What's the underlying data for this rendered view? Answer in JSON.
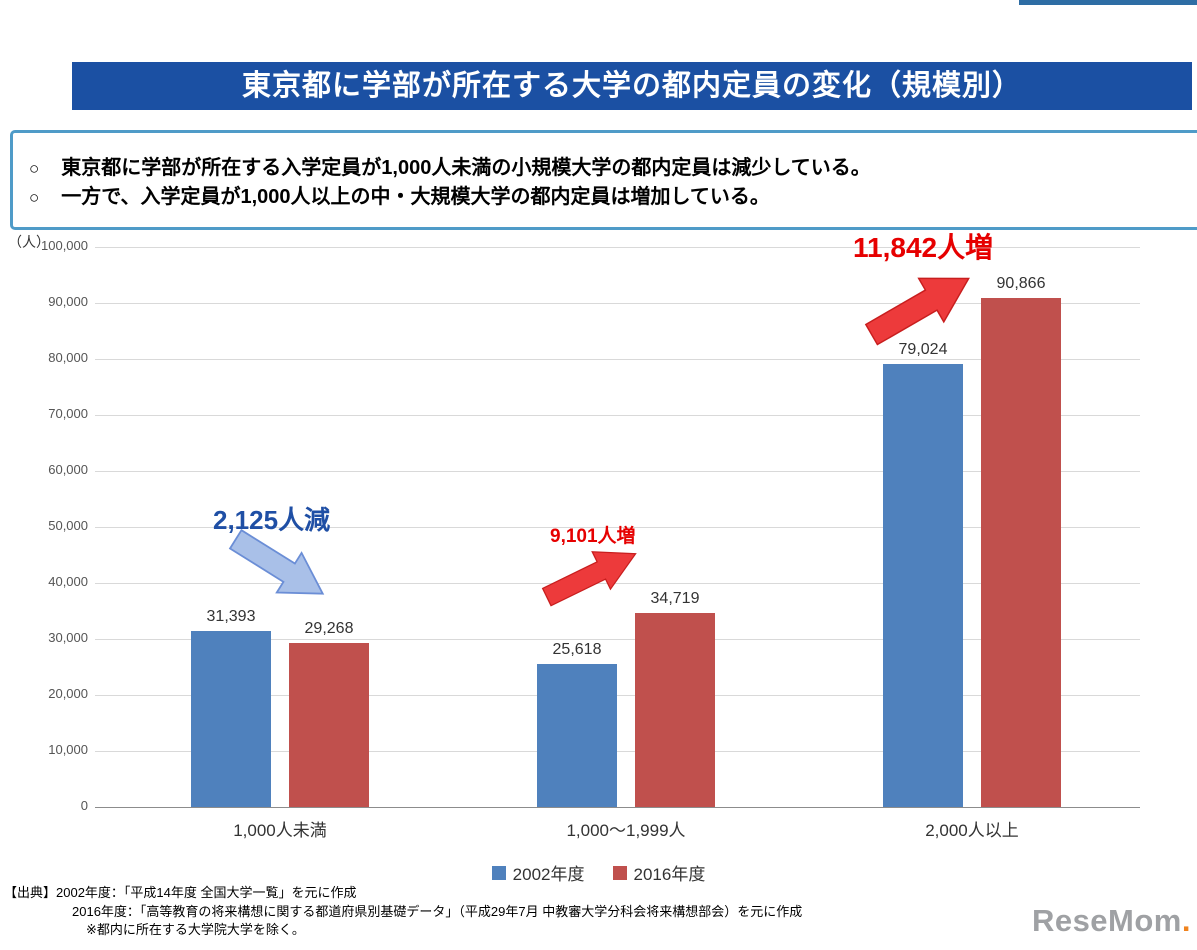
{
  "page": {
    "background": "#ffffff"
  },
  "accent": {
    "top_line_color": "#2E6DA4"
  },
  "header": {
    "title": "東京都に学部が所在する大学の都内定員の変化（規模別）",
    "bg_color": "#1B50A3",
    "text_color": "#ffffff"
  },
  "summary": {
    "bullet": "○",
    "border_color": "#4F9BC8",
    "points": [
      "東京都に学部が所在する入学定員が1,000人未満の小規模大学の都内定員は減少している。",
      "一方で、入学定員が1,000人以上の中・大規模大学の都内定員は増加している。"
    ]
  },
  "chart_data": {
    "type": "bar",
    "title": "",
    "unit_label": "（人）",
    "categories": [
      "1,000人未満",
      "1,000～1,999人",
      "2,000人以上"
    ],
    "series": [
      {
        "name": "2002年度",
        "color": "#4F81BD",
        "values": [
          31393,
          25618,
          79024
        ]
      },
      {
        "name": "2016年度",
        "color": "#C0504D",
        "values": [
          29268,
          34719,
          90866
        ]
      }
    ],
    "ylim": [
      0,
      100000
    ],
    "ytick_step": 10000,
    "grid": true,
    "legend_position": "bottom",
    "annotations": [
      {
        "text": "2,125人減",
        "color": "#1F4FA5",
        "arrow": "down-right",
        "arrow_color": "#A9C0E8",
        "category": "1,000人未満"
      },
      {
        "text": "9,101人増",
        "color": "#E60000",
        "arrow": "up-right",
        "arrow_color": "#ED3A3B",
        "category": "1,000～1,999人"
      },
      {
        "text": "11,842人増",
        "color": "#E60000",
        "arrow": "up-right",
        "arrow_color": "#ED3A3B",
        "category": "2,000人以上"
      }
    ]
  },
  "footnotes": [
    "【出典】2002年度：「平成14年度 全国大学一覧」を元に作成",
    "2016年度：「高等教育の将来構想に関する都道府県別基礎データ」（平成29年7月 中教審大学分科会将来構想部会）を元に作成",
    "※都内に所在する大学院大学を除く。"
  ],
  "logo": {
    "text": "ReseMom",
    "dot": ".",
    "text_color": "#9FA1A4",
    "dot_color": "#F0831E"
  }
}
